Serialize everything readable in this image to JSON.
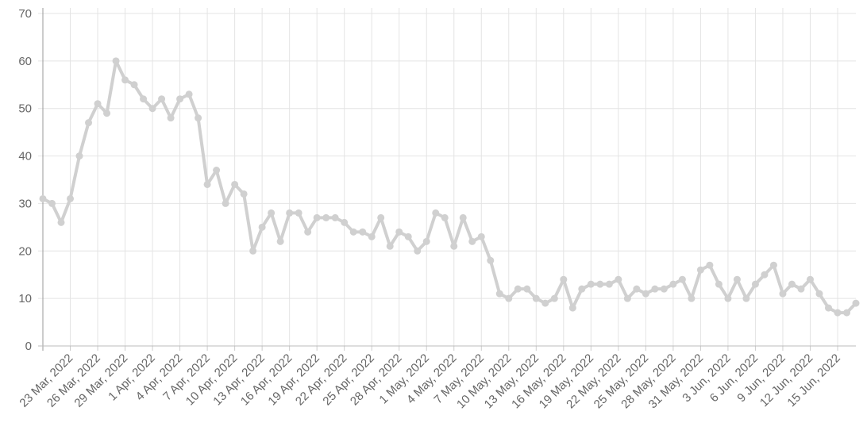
{
  "chart_data": {
    "type": "line",
    "categories": [
      null,
      null,
      null,
      "23 Mar, 2022",
      null,
      null,
      "26 Mar, 2022",
      null,
      null,
      "29 Mar, 2022",
      null,
      null,
      "1 Apr, 2022",
      null,
      null,
      "4 Apr, 2022",
      null,
      null,
      "7 Apr, 2022",
      null,
      null,
      "10 Apr, 2022",
      null,
      null,
      "13 Apr, 2022",
      null,
      null,
      "16 Apr, 2022",
      null,
      null,
      "19 Apr, 2022",
      null,
      null,
      "22 Apr, 2022",
      null,
      null,
      "25 Apr, 2022",
      null,
      null,
      "28 Apr, 2022",
      null,
      null,
      "1 May, 2022",
      null,
      null,
      "4 May, 2022",
      null,
      null,
      "7 May, 2022",
      null,
      null,
      "10 May, 2022",
      null,
      null,
      "13 May, 2022",
      null,
      null,
      "16 May, 2022",
      null,
      null,
      "19 May, 2022",
      null,
      null,
      "22 May, 2022",
      null,
      null,
      "25 May, 2022",
      null,
      null,
      "28 May, 2022",
      null,
      null,
      "31 May, 2022",
      null,
      null,
      "3 Jun, 2022",
      null,
      null,
      "6 Jun, 2022",
      null,
      null,
      "9 Jun, 2022",
      null,
      null,
      "12 Jun, 2022",
      null,
      null,
      "15 Jun, 2022",
      null,
      null
    ],
    "values": [
      31,
      30,
      26,
      31,
      40,
      47,
      51,
      49,
      60,
      56,
      55,
      52,
      50,
      52,
      48,
      52,
      53,
      48,
      34,
      37,
      30,
      34,
      32,
      20,
      25,
      28,
      22,
      28,
      28,
      24,
      27,
      27,
      27,
      26,
      24,
      24,
      23,
      27,
      21,
      24,
      23,
      20,
      22,
      28,
      27,
      21,
      27,
      22,
      23,
      18,
      11,
      10,
      12,
      12,
      10,
      9,
      10,
      14,
      8,
      12,
      13,
      13,
      13,
      14,
      10,
      12,
      11,
      12,
      12,
      13,
      14,
      10,
      16,
      17,
      13,
      10,
      14,
      10,
      13,
      15,
      17,
      11,
      13,
      12,
      14,
      11,
      8,
      7,
      7,
      9
    ],
    "color": "#d0d0d0",
    "ylim": [
      0,
      70
    ],
    "yticks": [
      0,
      10,
      20,
      30,
      40,
      50,
      60,
      70
    ],
    "grid": true
  }
}
